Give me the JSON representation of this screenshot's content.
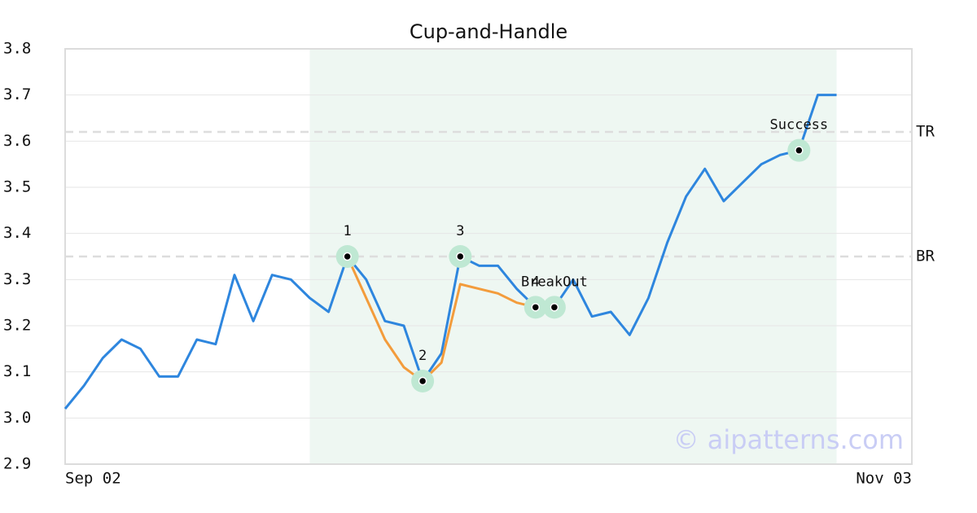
{
  "chart_data": {
    "type": "line",
    "title": "Cup-and-Handle",
    "categories": [
      "Sep 02",
      null,
      null,
      null,
      null,
      null,
      null,
      null,
      null,
      null,
      null,
      null,
      null,
      null,
      null,
      null,
      null,
      null,
      null,
      null,
      null,
      null,
      null,
      null,
      null,
      null,
      null,
      null,
      null,
      null,
      null,
      null,
      null,
      null,
      null,
      null,
      null,
      null,
      null,
      null,
      null,
      null,
      null,
      null,
      null,
      "Nov 03"
    ],
    "series": [
      {
        "color": "#2e86de",
        "values": [
          3.02,
          3.07,
          3.13,
          3.17,
          3.15,
          3.09,
          3.09,
          3.17,
          3.16,
          3.31,
          3.21,
          3.31,
          3.3,
          3.26,
          3.23,
          3.35,
          3.3,
          3.21,
          3.2,
          3.08,
          3.14,
          3.35,
          3.33,
          3.33,
          3.28,
          3.24,
          3.24,
          3.3,
          3.22,
          3.23,
          3.18,
          3.26,
          3.38,
          3.48,
          3.54,
          3.47,
          3.51,
          3.55,
          3.57,
          3.58,
          3.7,
          3.7,
          null,
          null,
          null,
          null
        ]
      },
      {
        "color": "#f39c3c",
        "values": [
          null,
          null,
          null,
          null,
          null,
          null,
          null,
          null,
          null,
          null,
          null,
          null,
          null,
          null,
          null,
          3.35,
          3.26,
          3.17,
          3.11,
          3.08,
          3.12,
          3.29,
          3.28,
          3.27,
          3.25,
          3.24,
          null,
          null,
          null,
          null,
          null,
          null,
          null,
          null,
          null,
          null,
          null,
          null,
          null,
          null,
          null,
          null,
          null,
          null,
          null,
          null
        ]
      }
    ],
    "ylim": [
      2.9,
      3.8
    ],
    "yticks": [
      2.9,
      {
        "value": 3,
        "label": "3.0"
      },
      3.1,
      3.2,
      3.3,
      3.4,
      3.5,
      3.6,
      3.7,
      3.8
    ],
    "grid": true,
    "highlight": [
      13,
      41
    ],
    "levels": [
      {
        "label": "TR",
        "value": 3.62
      },
      {
        "label": "BR",
        "value": 3.35
      }
    ],
    "annotations": [
      {
        "label": "1",
        "at": 15,
        "value": 3.35
      },
      {
        "label": "2",
        "at": 19,
        "value": 3.08
      },
      {
        "label": "3",
        "at": 21,
        "value": 3.35
      },
      {
        "label": "4",
        "at": 25,
        "value": 3.24
      },
      {
        "label": "BreakOut",
        "at": 26,
        "value": 3.24
      },
      {
        "label": "Success",
        "at": 39,
        "value": 3.58
      }
    ],
    "watermark": "© aipatterns.com"
  }
}
